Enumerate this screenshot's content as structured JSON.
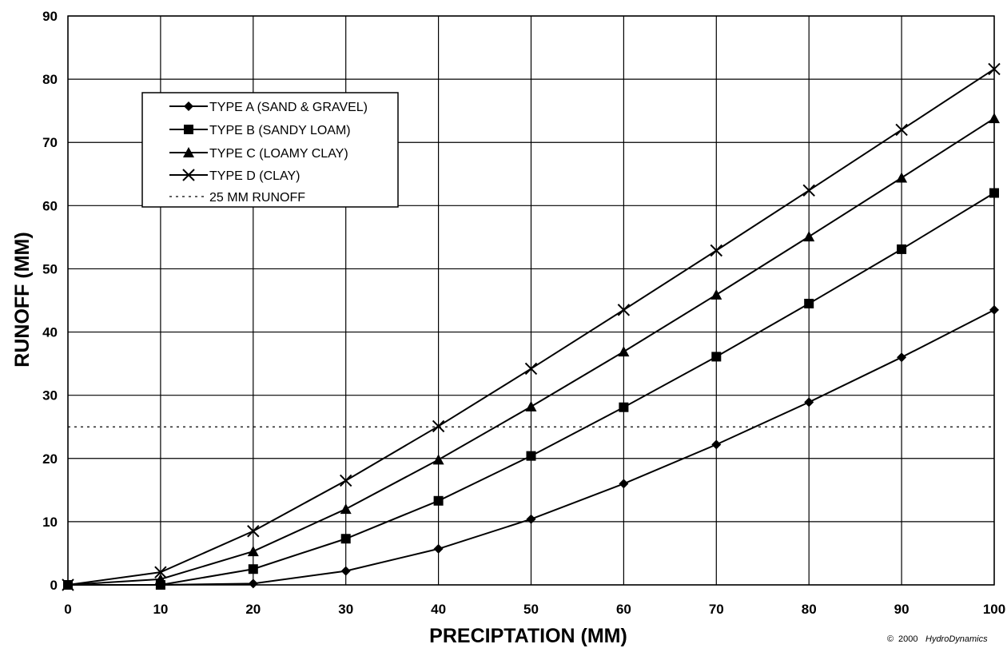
{
  "chart_data": {
    "type": "line",
    "title": "",
    "xlabel": "PRECIPTATION (MM)",
    "ylabel": "RUNOFF (MM)",
    "xlim": [
      0,
      100
    ],
    "ylim": [
      0,
      90
    ],
    "x_ticks": [
      "0",
      "10",
      "20",
      "30",
      "40",
      "50",
      "60",
      "70",
      "80",
      "90",
      "100"
    ],
    "y_ticks": [
      "0",
      "10",
      "20",
      "30",
      "40",
      "50",
      "60",
      "70",
      "80",
      "90"
    ],
    "grid": true,
    "legend_position": "upper-left",
    "x": [
      0,
      10,
      20,
      30,
      40,
      50,
      60,
      70,
      80,
      90,
      100
    ],
    "series": [
      {
        "name": "TYPE A (SAND & GRAVEL)",
        "marker": "diamond",
        "values": [
          0,
          0,
          0.2,
          2.2,
          5.7,
          10.4,
          16,
          22.2,
          28.9,
          36,
          43.5
        ]
      },
      {
        "name": "TYPE B (SANDY LOAM)",
        "marker": "square",
        "values": [
          0,
          0,
          2.5,
          7.3,
          13.3,
          20.4,
          28.1,
          36.1,
          44.5,
          53.1,
          62
        ]
      },
      {
        "name": "TYPE C (LOAMY CLAY)",
        "marker": "triangle",
        "values": [
          0,
          0.9,
          5.3,
          12,
          19.8,
          28.2,
          36.9,
          45.9,
          55.1,
          64.4,
          73.8
        ]
      },
      {
        "name": "TYPE D (CLAY)",
        "marker": "x",
        "values": [
          0,
          2,
          8.5,
          16.5,
          25.1,
          34.2,
          43.5,
          52.9,
          62.4,
          72,
          81.6
        ]
      }
    ],
    "reference_line": {
      "name": "25 MM RUNOFF",
      "style": "dotted",
      "y": 25
    },
    "credit": {
      "symbol": "©",
      "year": "2000",
      "brand": "HydroDynamics"
    }
  }
}
